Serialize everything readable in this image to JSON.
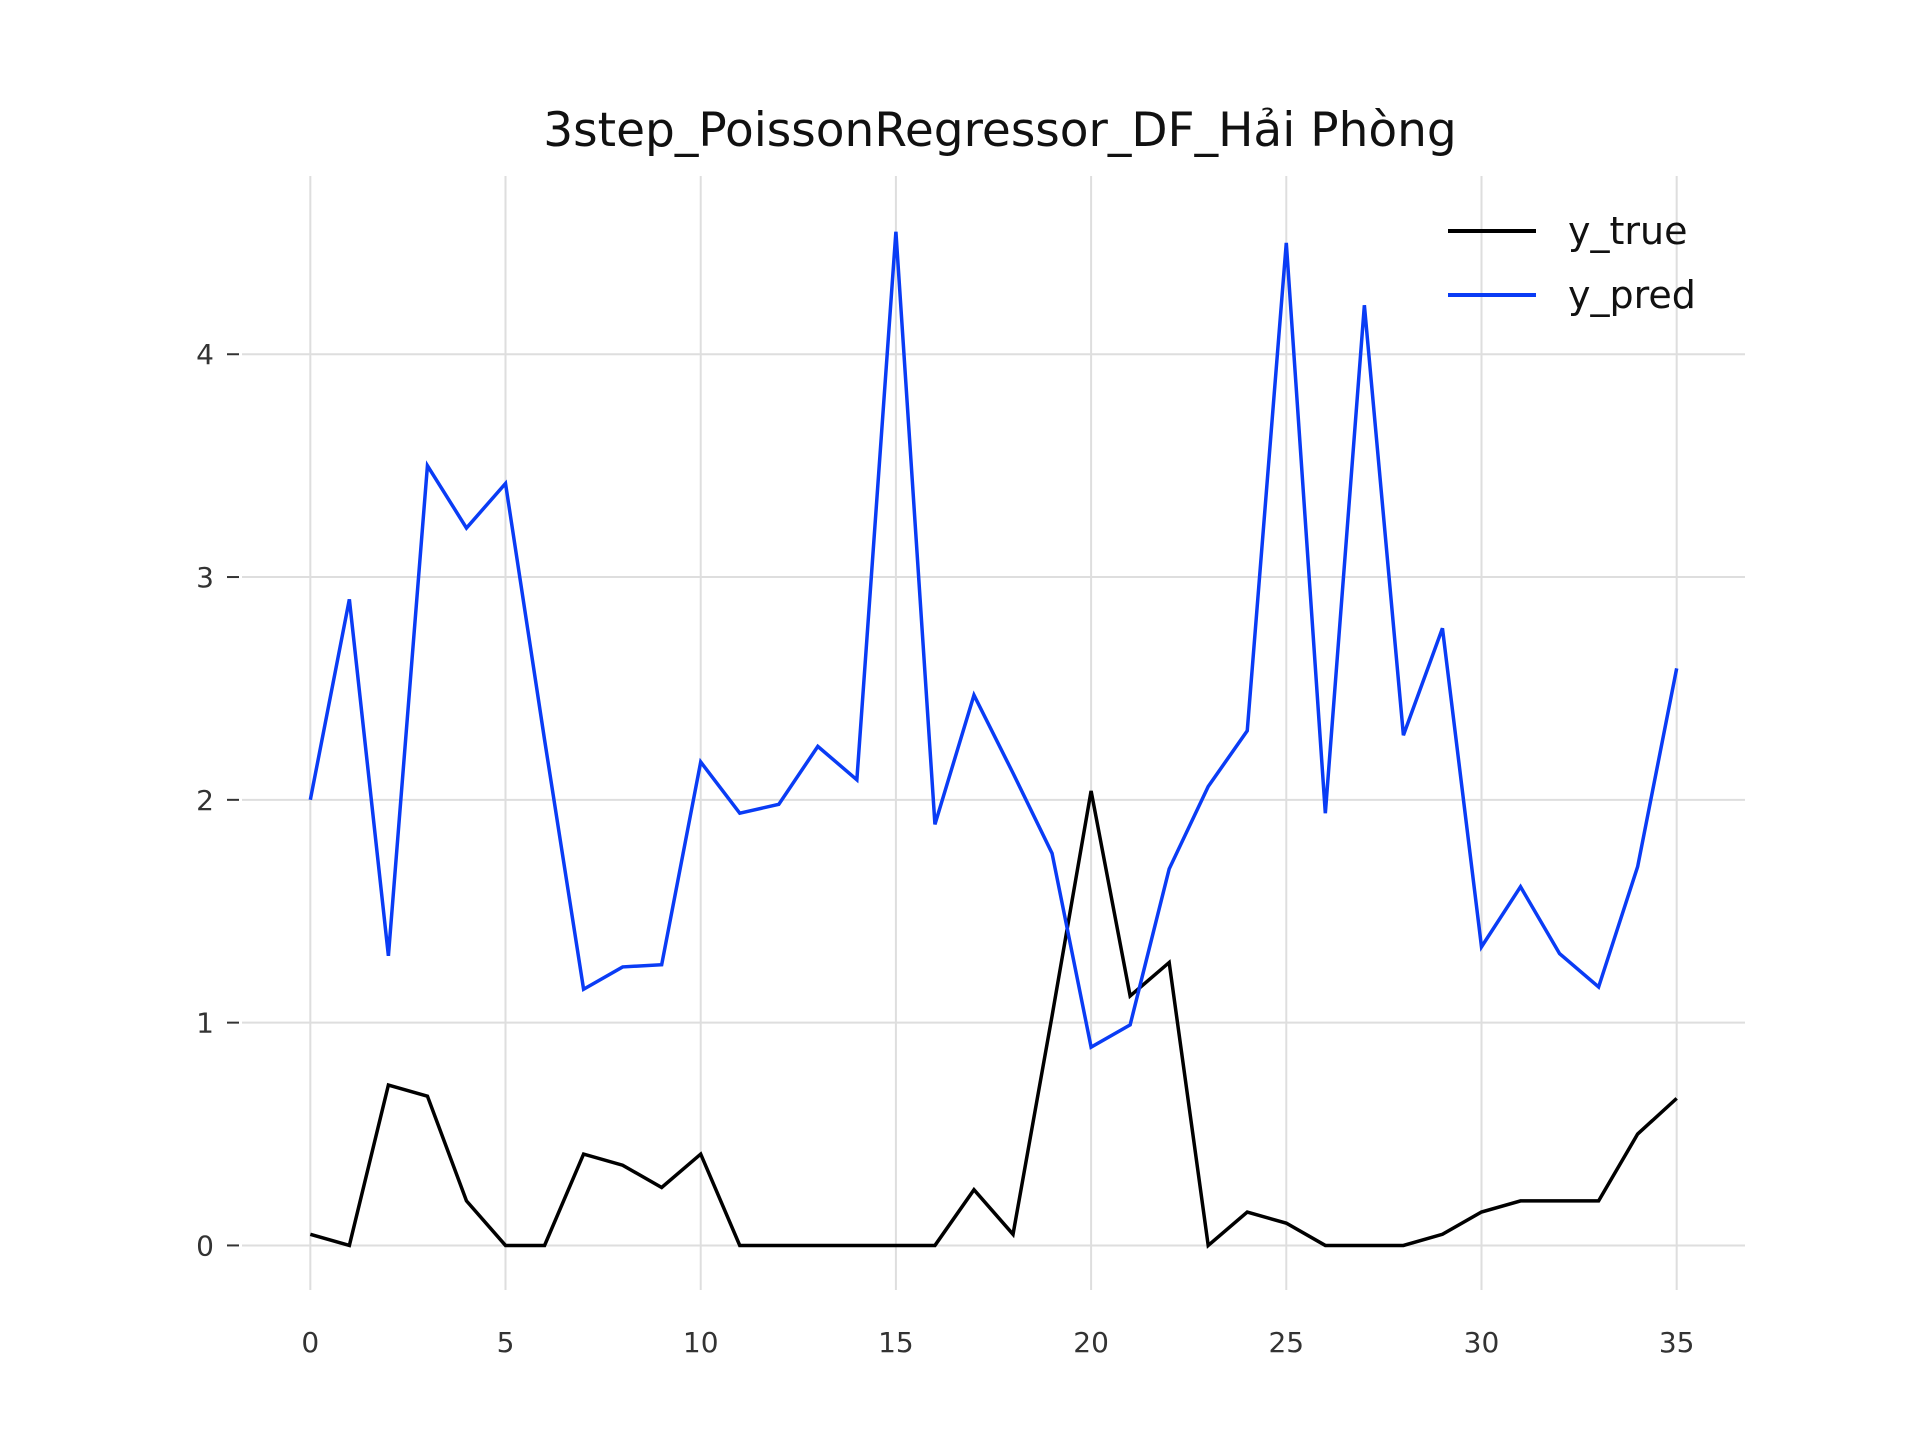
{
  "chart_data": {
    "type": "line",
    "title": "3step_PoissonRegressor_DF_Hải Phòng",
    "xlabel": "",
    "ylabel": "",
    "xlim": [
      -1.75,
      36.75
    ],
    "ylim": [
      -0.2,
      4.8
    ],
    "xticks": [
      0,
      5,
      10,
      15,
      20,
      25,
      30,
      35
    ],
    "yticks": [
      0,
      1,
      2,
      3,
      4
    ],
    "grid": true,
    "legend_position": "top-right",
    "x": [
      0,
      1,
      2,
      3,
      4,
      5,
      6,
      7,
      8,
      9,
      10,
      11,
      12,
      13,
      14,
      15,
      16,
      17,
      18,
      19,
      20,
      21,
      22,
      23,
      24,
      25,
      26,
      27,
      28,
      29,
      30,
      31,
      32,
      33,
      34,
      35
    ],
    "series": [
      {
        "name": "y_true",
        "color": "#000000",
        "values": [
          0.05,
          0,
          0.72,
          0.67,
          0.2,
          0,
          0,
          0.41,
          0.36,
          0.26,
          0.41,
          0,
          0,
          0,
          0,
          0,
          0,
          0.25,
          0.05,
          1.03,
          2.04,
          1.12,
          1.27,
          0,
          0.15,
          0.1,
          0,
          0,
          0,
          0.05,
          0.15,
          0.2,
          0.2,
          0.2,
          0.5,
          0.66
        ]
      },
      {
        "name": "y_pred",
        "color": "#0a3cf5",
        "values": [
          2.0,
          2.9,
          1.3,
          3.5,
          3.22,
          3.42,
          2.27,
          1.15,
          1.25,
          1.26,
          2.17,
          1.94,
          1.98,
          2.24,
          2.09,
          4.55,
          1.89,
          2.47,
          2.12,
          1.76,
          0.89,
          0.99,
          1.69,
          2.06,
          2.31,
          4.5,
          1.94,
          4.22,
          2.29,
          2.77,
          1.34,
          1.61,
          1.31,
          1.16,
          1.7,
          2.59
        ]
      }
    ]
  }
}
